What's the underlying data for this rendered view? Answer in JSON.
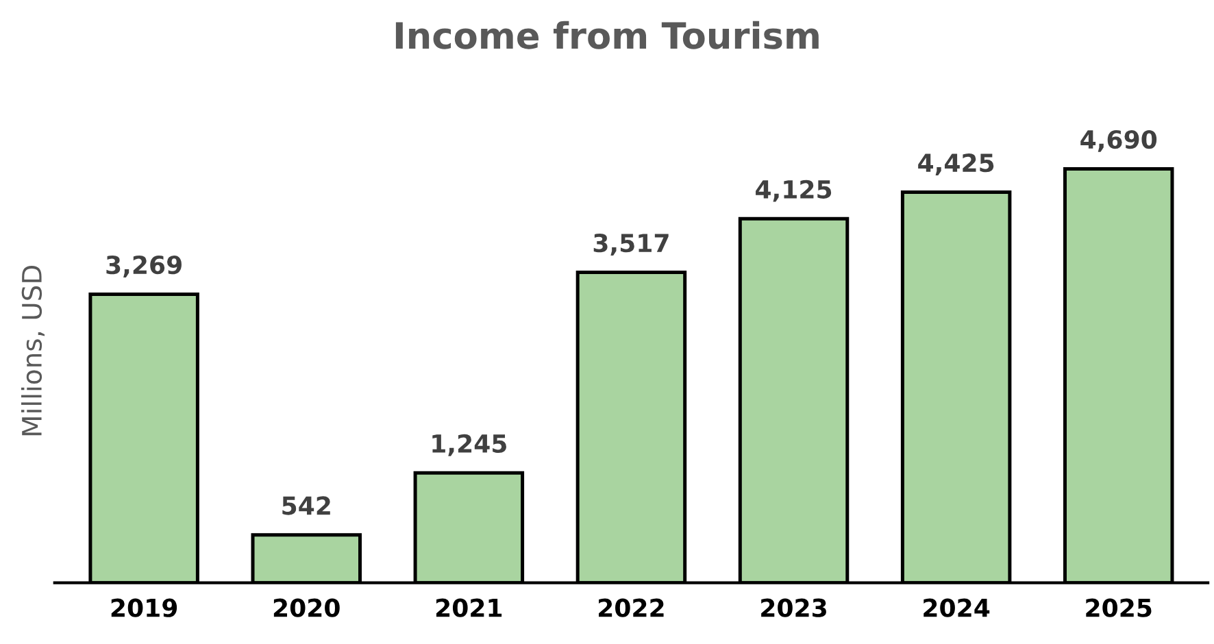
{
  "chart_data": {
    "type": "bar",
    "title": "Income from Tourism",
    "ylabel": "Millions, USD",
    "categories": [
      "2019",
      "2020",
      "2021",
      "2022",
      "2023",
      "2024",
      "2025"
    ],
    "values": [
      3269,
      542,
      1245,
      3517,
      4125,
      4425,
      4690
    ],
    "value_labels": [
      "3,269",
      "542",
      "1,245",
      "3,517",
      "4,125",
      "4,425",
      "4,690"
    ],
    "color": "#a9d4a0",
    "grid": false,
    "legend": false
  }
}
